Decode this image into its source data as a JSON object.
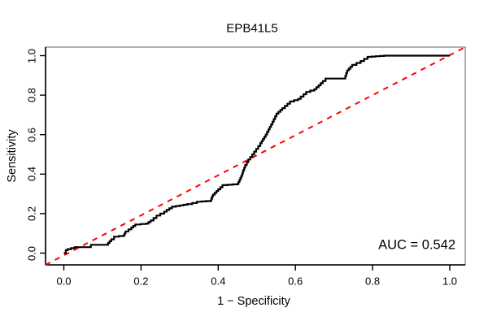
{
  "title": "EPB41L5",
  "x_axis": {
    "label": "1 − Specificity",
    "tick_labels": [
      "0.0",
      "0.2",
      "0.4",
      "0.6",
      "0.8",
      "1.0"
    ],
    "tick_values": [
      0.0,
      0.2,
      0.4,
      0.6,
      0.8,
      1.0
    ]
  },
  "y_axis": {
    "label": "Sensitivity",
    "tick_labels": [
      "0.0",
      "0.2",
      "0.4",
      "0.6",
      "0.8",
      "1.0"
    ],
    "tick_values": [
      0.0,
      0.2,
      0.4,
      0.6,
      0.8,
      1.0
    ]
  },
  "annotation": {
    "auc_text": "AUC = 0.542"
  },
  "colors": {
    "curve": "#000000",
    "diagonal": "#ff0000",
    "box": "#8f8f8f",
    "axis": "#000000",
    "text": "#000000"
  },
  "chart_data": {
    "type": "line",
    "title": "EPB41L5",
    "xlabel": "1 − Specificity",
    "ylabel": "Sensitivity",
    "xlim": [
      -0.04,
      1.04
    ],
    "ylim": [
      -0.04,
      1.04
    ],
    "grid": false,
    "auc": 0.542,
    "series": [
      {
        "name": "ROC curve",
        "style": "step",
        "color": "#000000",
        "points": [
          [
            0.0,
            0.0
          ],
          [
            0.005,
            0.015
          ],
          [
            0.01,
            0.02
          ],
          [
            0.028,
            0.03
          ],
          [
            0.065,
            0.03
          ],
          [
            0.07,
            0.042
          ],
          [
            0.11,
            0.042
          ],
          [
            0.123,
            0.07
          ],
          [
            0.13,
            0.083
          ],
          [
            0.155,
            0.09
          ],
          [
            0.16,
            0.11
          ],
          [
            0.175,
            0.13
          ],
          [
            0.185,
            0.145
          ],
          [
            0.214,
            0.15
          ],
          [
            0.225,
            0.165
          ],
          [
            0.24,
            0.19
          ],
          [
            0.26,
            0.21
          ],
          [
            0.28,
            0.235
          ],
          [
            0.32,
            0.248
          ],
          [
            0.345,
            0.26
          ],
          [
            0.38,
            0.265
          ],
          [
            0.386,
            0.296
          ],
          [
            0.4,
            0.323
          ],
          [
            0.411,
            0.344
          ],
          [
            0.45,
            0.35
          ],
          [
            0.455,
            0.37
          ],
          [
            0.462,
            0.4
          ],
          [
            0.465,
            0.42
          ],
          [
            0.47,
            0.446
          ],
          [
            0.478,
            0.474
          ],
          [
            0.488,
            0.5
          ],
          [
            0.509,
            0.556
          ],
          [
            0.523,
            0.6
          ],
          [
            0.537,
            0.652
          ],
          [
            0.551,
            0.706
          ],
          [
            0.566,
            0.734
          ],
          [
            0.586,
            0.768
          ],
          [
            0.607,
            0.781
          ],
          [
            0.628,
            0.816
          ],
          [
            0.649,
            0.83
          ],
          [
            0.66,
            0.85
          ],
          [
            0.671,
            0.871
          ],
          [
            0.678,
            0.884
          ],
          [
            0.727,
            0.884
          ],
          [
            0.734,
            0.925
          ],
          [
            0.747,
            0.953
          ],
          [
            0.769,
            0.973
          ],
          [
            0.787,
            0.994
          ],
          [
            0.83,
            1.0
          ],
          [
            1.0,
            1.0
          ]
        ]
      },
      {
        "name": "chance diagonal",
        "style": "dashed",
        "color": "#ff0000",
        "points": [
          [
            -0.04,
            -0.04
          ],
          [
            1.04,
            1.04
          ]
        ]
      }
    ]
  }
}
